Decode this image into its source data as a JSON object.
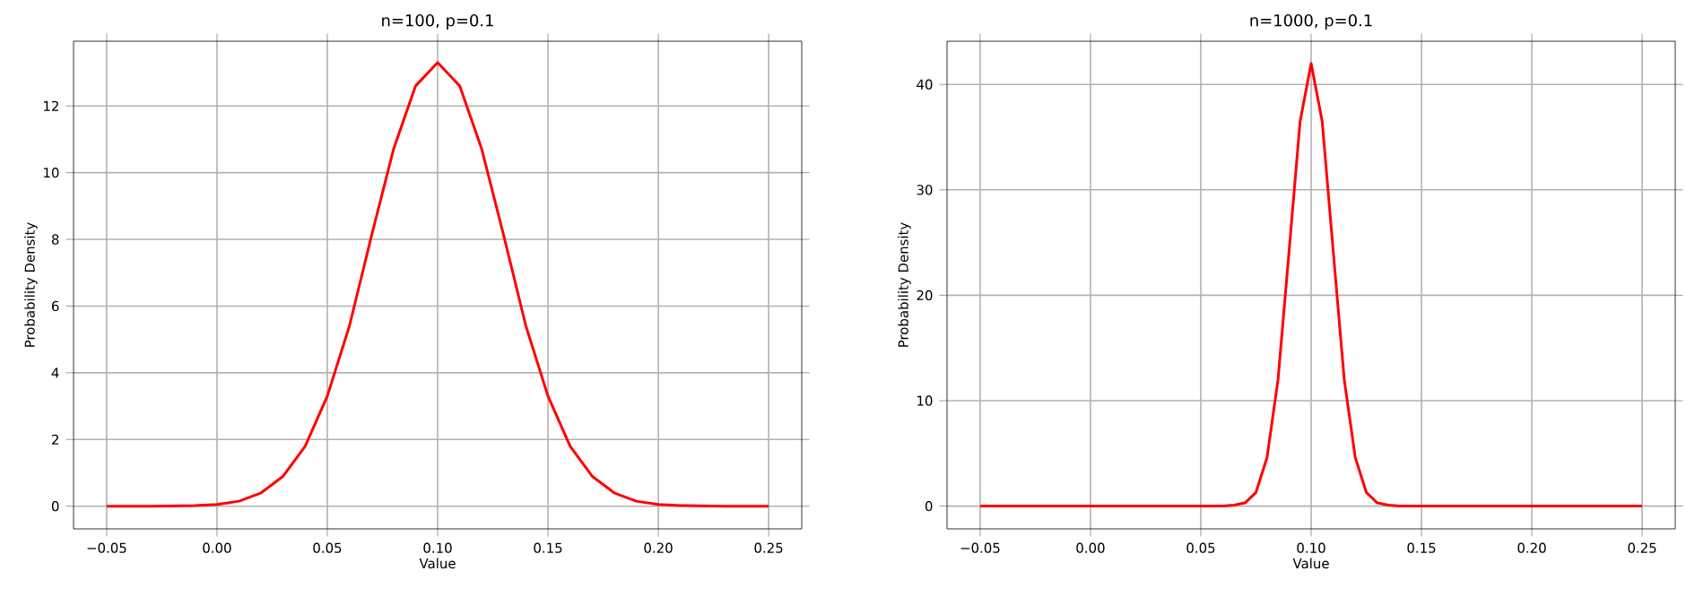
{
  "chart_data": [
    {
      "type": "line",
      "title": "n=100, p=0.1",
      "xlabel": "Value",
      "ylabel": "Probability Density",
      "x": [
        -0.05,
        -0.03,
        -0.01,
        0.0,
        0.01,
        0.02,
        0.03,
        0.04,
        0.05,
        0.06,
        0.07,
        0.08,
        0.09,
        0.1,
        0.11,
        0.12,
        0.13,
        0.14,
        0.15,
        0.16,
        0.17,
        0.18,
        0.19,
        0.2,
        0.21,
        0.23,
        0.25
      ],
      "series": [
        {
          "color": "#ff0000",
          "values": [
            0,
            0,
            0.02,
            0.05,
            0.15,
            0.4,
            0.9,
            1.8,
            3.3,
            5.4,
            8.1,
            10.7,
            12.6,
            13.3,
            12.6,
            10.7,
            8.1,
            5.4,
            3.3,
            1.8,
            0.9,
            0.4,
            0.15,
            0.05,
            0.02,
            0,
            0
          ]
        }
      ],
      "xlim": [
        -0.065,
        0.265
      ],
      "ylim": [
        -0.68,
        13.94
      ],
      "xticks": [
        {
          "value": -0.05,
          "label": "−0.05"
        },
        {
          "value": 0.0,
          "label": "0.00"
        },
        0.05,
        {
          "value": 0.1,
          "label": "0.10"
        },
        0.15,
        {
          "value": 0.2,
          "label": "0.20"
        },
        0.25
      ],
      "yticks": [
        0,
        2,
        4,
        6,
        8,
        10,
        12
      ],
      "grid": true,
      "marker": "none",
      "line_style": "solid"
    },
    {
      "type": "line",
      "title": "n=1000, p=0.1",
      "xlabel": "Value",
      "ylabel": "Probability Density",
      "x": [
        -0.05,
        0.0,
        0.05,
        0.06,
        0.065,
        0.07,
        0.075,
        0.08,
        0.085,
        0.09,
        0.095,
        0.1,
        0.105,
        0.11,
        0.115,
        0.12,
        0.125,
        0.13,
        0.135,
        0.14,
        0.15,
        0.2,
        0.25
      ],
      "series": [
        {
          "color": "#ff0000",
          "values": [
            0,
            0,
            0,
            0,
            0.1,
            0.3,
            1.3,
            4.6,
            12,
            24.2,
            36.5,
            42,
            36.5,
            24.2,
            12,
            4.6,
            1.3,
            0.3,
            0.1,
            0,
            0,
            0,
            0
          ]
        }
      ],
      "xlim": [
        -0.065,
        0.265
      ],
      "ylim": [
        -2.16,
        44.1
      ],
      "xticks": [
        {
          "value": -0.05,
          "label": "−0.05"
        },
        {
          "value": 0.0,
          "label": "0.00"
        },
        0.05,
        {
          "value": 0.1,
          "label": "0.10"
        },
        0.15,
        {
          "value": 0.2,
          "label": "0.20"
        },
        0.25
      ],
      "yticks": [
        0,
        10,
        20,
        30,
        40
      ],
      "grid": true,
      "marker": "none",
      "line_style": "solid"
    }
  ]
}
